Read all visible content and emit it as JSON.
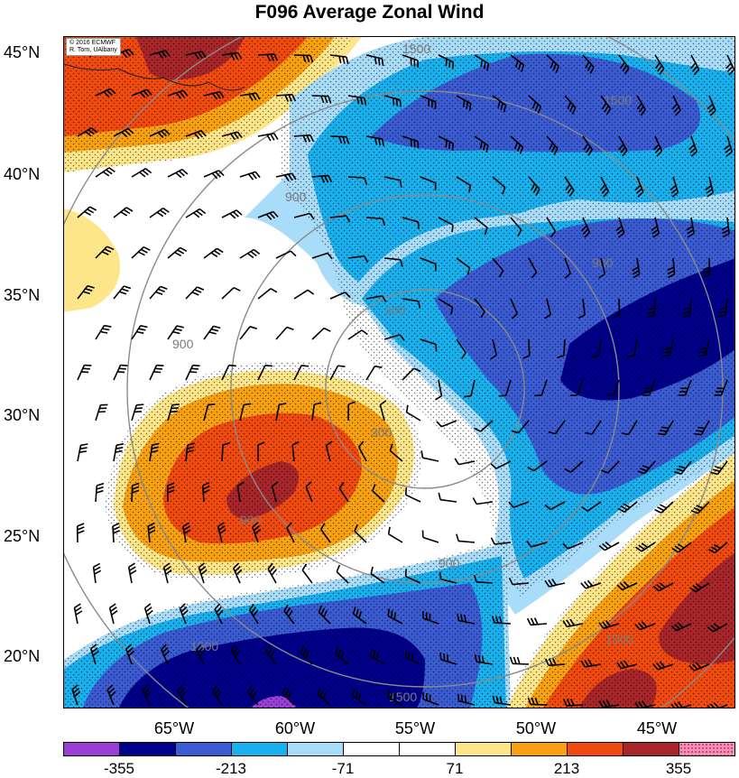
{
  "title": "F096 Average Zonal Wind",
  "credit": {
    "line1": "© 2016 ECMWF",
    "line2": "R. Torn, UAlbany"
  },
  "latitudes": [
    "45°N",
    "40°N",
    "35°N",
    "30°N",
    "25°N",
    "20°N"
  ],
  "longitudes": [
    "65°W",
    "60°W",
    "55°W",
    "50°W",
    "45°W"
  ],
  "height_contour_labels": [
    "300",
    "900",
    "1500"
  ],
  "colorbar": {
    "ticks": [
      "-355",
      "-213",
      "-71",
      "71",
      "213",
      "355"
    ],
    "colors": [
      "#9a3fd6",
      "#00008b",
      "#3a5bd1",
      "#1ab0ee",
      "#a8dcf8",
      "#ffffff",
      "#ffffff",
      "#fde68a",
      "#f8a213",
      "#f04a10",
      "#a8262a",
      "#f48fb5"
    ]
  },
  "palette": {
    "navy": "#00008b",
    "blue": "#3a5bd1",
    "cyan": "#1ab0ee",
    "lightblue": "#a8dcf8",
    "yellow": "#fde68a",
    "orange": "#f8a213",
    "redorange": "#f04a10",
    "darkred": "#a8262a",
    "purple": "#9a3fd6"
  }
}
